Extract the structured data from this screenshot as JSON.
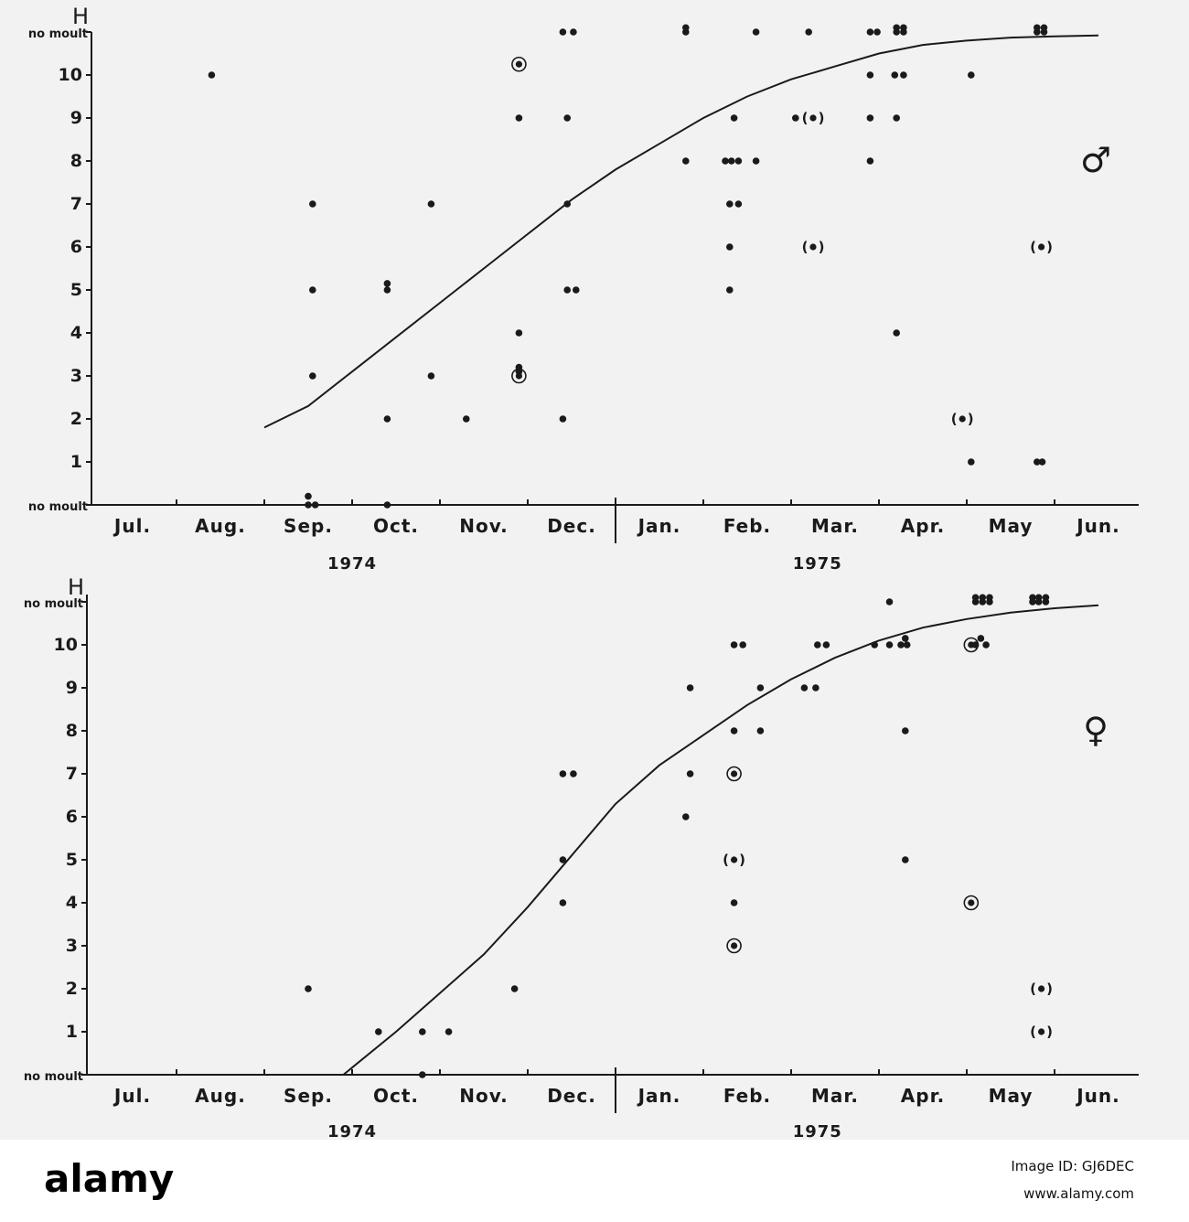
{
  "chart_data": [
    {
      "type": "scatter",
      "panel": "male",
      "ylabel": "H",
      "y_ticks": [
        "no moult",
        "1",
        "2",
        "3",
        "4",
        "5",
        "6",
        "7",
        "8",
        "9",
        "10",
        "no moult"
      ],
      "months": [
        "Jul.",
        "Aug.",
        "Sep.",
        "Oct.",
        "Nov.",
        "Dec.",
        "Jan.",
        "Feb.",
        "Mar.",
        "Apr.",
        "May",
        "Jun."
      ],
      "years": [
        "1974",
        "1975"
      ],
      "sex_symbol": "♂",
      "points": [
        {
          "x": 0.9,
          "y": 10
        },
        {
          "x": 2.0,
          "y": 0
        },
        {
          "x": 2.08,
          "y": 0
        },
        {
          "x": 2.0,
          "y": 0.2
        },
        {
          "x": 2.05,
          "y": 3
        },
        {
          "x": 2.05,
          "y": 5
        },
        {
          "x": 2.05,
          "y": 7
        },
        {
          "x": 2.9,
          "y": 0
        },
        {
          "x": 2.9,
          "y": 2
        },
        {
          "x": 2.9,
          "y": 5
        },
        {
          "x": 2.9,
          "y": 5.15
        },
        {
          "x": 3.4,
          "y": 3
        },
        {
          "x": 3.4,
          "y": 7
        },
        {
          "x": 3.8,
          "y": 2
        },
        {
          "x": 4.4,
          "y": 3.1
        },
        {
          "x": 4.4,
          "y": 3.2
        },
        {
          "x": 4.4,
          "y": 4
        },
        {
          "x": 4.4,
          "y": 9
        },
        {
          "x": 4.9,
          "y": 2
        },
        {
          "x": 4.95,
          "y": 5
        },
        {
          "x": 5.05,
          "y": 5
        },
        {
          "x": 4.95,
          "y": 7
        },
        {
          "x": 4.95,
          "y": 9
        },
        {
          "x": 4.9,
          "y": 11
        },
        {
          "x": 5.02,
          "y": 11
        },
        {
          "x": 6.3,
          "y": 8
        },
        {
          "x": 6.3,
          "y": 11
        },
        {
          "x": 6.3,
          "y": 11.1
        },
        {
          "x": 6.8,
          "y": 5
        },
        {
          "x": 6.8,
          "y": 6
        },
        {
          "x": 6.8,
          "y": 7
        },
        {
          "x": 6.9,
          "y": 7
        },
        {
          "x": 6.75,
          "y": 8
        },
        {
          "x": 6.82,
          "y": 8
        },
        {
          "x": 6.9,
          "y": 8
        },
        {
          "x": 6.85,
          "y": 9
        },
        {
          "x": 7.1,
          "y": 8
        },
        {
          "x": 7.1,
          "y": 11
        },
        {
          "x": 7.55,
          "y": 9
        },
        {
          "x": 7.7,
          "y": 11
        },
        {
          "x": 8.4,
          "y": 8
        },
        {
          "x": 8.4,
          "y": 9
        },
        {
          "x": 8.4,
          "y": 10
        },
        {
          "x": 8.4,
          "y": 11
        },
        {
          "x": 8.48,
          "y": 11
        },
        {
          "x": 8.7,
          "y": 4
        },
        {
          "x": 8.7,
          "y": 9
        },
        {
          "x": 8.68,
          "y": 10
        },
        {
          "x": 8.78,
          "y": 10
        },
        {
          "x": 8.7,
          "y": 11
        },
        {
          "x": 8.78,
          "y": 11
        },
        {
          "x": 8.7,
          "y": 11.1
        },
        {
          "x": 8.78,
          "y": 11.1
        },
        {
          "x": 9.55,
          "y": 1
        },
        {
          "x": 9.55,
          "y": 10
        },
        {
          "x": 10.3,
          "y": 1
        },
        {
          "x": 10.36,
          "y": 1
        },
        {
          "x": 10.3,
          "y": 11
        },
        {
          "x": 10.38,
          "y": 11
        },
        {
          "x": 10.3,
          "y": 11.1
        },
        {
          "x": 10.38,
          "y": 11.1
        }
      ],
      "circled_points": [
        {
          "x": 4.4,
          "y": 10.25
        },
        {
          "x": 4.4,
          "y": 3
        }
      ],
      "parenthesized_points": [
        {
          "x": 7.75,
          "y": 9
        },
        {
          "x": 7.75,
          "y": 6
        },
        {
          "x": 10.35,
          "y": 6
        },
        {
          "x": 9.45,
          "y": 2
        }
      ],
      "curve": [
        {
          "x": 1.5,
          "y": 1.8
        },
        {
          "x": 2.0,
          "y": 2.3
        },
        {
          "x": 2.5,
          "y": 3.1
        },
        {
          "x": 3.0,
          "y": 3.9
        },
        {
          "x": 3.5,
          "y": 4.7
        },
        {
          "x": 4.0,
          "y": 5.5
        },
        {
          "x": 4.5,
          "y": 6.3
        },
        {
          "x": 5.0,
          "y": 7.1
        },
        {
          "x": 5.5,
          "y": 7.8
        },
        {
          "x": 6.0,
          "y": 8.4
        },
        {
          "x": 6.5,
          "y": 9.0
        },
        {
          "x": 7.0,
          "y": 9.5
        },
        {
          "x": 7.5,
          "y": 9.9
        },
        {
          "x": 8.0,
          "y": 10.2
        },
        {
          "x": 8.5,
          "y": 10.5
        },
        {
          "x": 9.0,
          "y": 10.7
        },
        {
          "x": 9.5,
          "y": 10.8
        },
        {
          "x": 10.0,
          "y": 10.87
        },
        {
          "x": 10.5,
          "y": 10.9
        },
        {
          "x": 11.0,
          "y": 10.92
        }
      ],
      "y_range": [
        0,
        11
      ],
      "x_range": [
        0,
        12
      ]
    },
    {
      "type": "scatter",
      "panel": "female",
      "ylabel": "H",
      "y_ticks": [
        "no moult",
        "1",
        "2",
        "3",
        "4",
        "5",
        "6",
        "7",
        "8",
        "9",
        "10",
        "no moult"
      ],
      "months": [
        "Jul.",
        "Aug.",
        "Sep.",
        "Oct.",
        "Nov.",
        "Dec.",
        "Jan.",
        "Feb.",
        "Mar.",
        "Apr.",
        "May",
        "Jun."
      ],
      "years": [
        "1974",
        "1975"
      ],
      "sex_symbol": "♀",
      "points": [
        {
          "x": 2.0,
          "y": 2
        },
        {
          "x": 2.8,
          "y": 1
        },
        {
          "x": 3.3,
          "y": 0
        },
        {
          "x": 3.3,
          "y": 1
        },
        {
          "x": 3.6,
          "y": 1
        },
        {
          "x": 4.35,
          "y": 2
        },
        {
          "x": 4.9,
          "y": 4
        },
        {
          "x": 4.9,
          "y": 5
        },
        {
          "x": 4.9,
          "y": 7
        },
        {
          "x": 5.02,
          "y": 7
        },
        {
          "x": 6.3,
          "y": 6
        },
        {
          "x": 6.35,
          "y": 7
        },
        {
          "x": 6.35,
          "y": 9
        },
        {
          "x": 6.85,
          "y": 4
        },
        {
          "x": 6.85,
          "y": 8
        },
        {
          "x": 6.85,
          "y": 10
        },
        {
          "x": 6.95,
          "y": 10
        },
        {
          "x": 7.15,
          "y": 8
        },
        {
          "x": 7.15,
          "y": 9
        },
        {
          "x": 7.65,
          "y": 9
        },
        {
          "x": 7.78,
          "y": 9
        },
        {
          "x": 7.8,
          "y": 10
        },
        {
          "x": 7.9,
          "y": 10
        },
        {
          "x": 8.45,
          "y": 10
        },
        {
          "x": 8.62,
          "y": 10
        },
        {
          "x": 8.62,
          "y": 11
        },
        {
          "x": 8.8,
          "y": 5
        },
        {
          "x": 8.8,
          "y": 8
        },
        {
          "x": 8.75,
          "y": 10
        },
        {
          "x": 8.82,
          "y": 10
        },
        {
          "x": 8.8,
          "y": 10.15
        },
        {
          "x": 9.6,
          "y": 10
        },
        {
          "x": 9.72,
          "y": 10
        },
        {
          "x": 9.66,
          "y": 10.15
        },
        {
          "x": 9.6,
          "y": 11
        },
        {
          "x": 9.68,
          "y": 11
        },
        {
          "x": 9.76,
          "y": 11
        },
        {
          "x": 9.6,
          "y": 11.1
        },
        {
          "x": 9.68,
          "y": 11.1
        },
        {
          "x": 9.76,
          "y": 11.1
        },
        {
          "x": 10.25,
          "y": 11
        },
        {
          "x": 10.32,
          "y": 11
        },
        {
          "x": 10.4,
          "y": 11
        },
        {
          "x": 10.25,
          "y": 11.1
        },
        {
          "x": 10.32,
          "y": 11.1
        },
        {
          "x": 10.4,
          "y": 11.1
        }
      ],
      "circled_points": [
        {
          "x": 6.85,
          "y": 7
        },
        {
          "x": 6.85,
          "y": 3
        },
        {
          "x": 9.55,
          "y": 10
        },
        {
          "x": 9.55,
          "y": 4
        }
      ],
      "parenthesized_points": [
        {
          "x": 6.85,
          "y": 5
        },
        {
          "x": 10.35,
          "y": 2
        },
        {
          "x": 10.35,
          "y": 1
        }
      ],
      "curve": [
        {
          "x": 2.4,
          "y": 0
        },
        {
          "x": 3.0,
          "y": 1.0
        },
        {
          "x": 3.5,
          "y": 1.9
        },
        {
          "x": 4.0,
          "y": 2.8
        },
        {
          "x": 4.5,
          "y": 3.9
        },
        {
          "x": 5.0,
          "y": 5.1
        },
        {
          "x": 5.5,
          "y": 6.3
        },
        {
          "x": 6.0,
          "y": 7.2
        },
        {
          "x": 6.5,
          "y": 7.9
        },
        {
          "x": 7.0,
          "y": 8.6
        },
        {
          "x": 7.5,
          "y": 9.2
        },
        {
          "x": 8.0,
          "y": 9.7
        },
        {
          "x": 8.5,
          "y": 10.1
        },
        {
          "x": 9.0,
          "y": 10.4
        },
        {
          "x": 9.5,
          "y": 10.6
        },
        {
          "x": 10.0,
          "y": 10.75
        },
        {
          "x": 10.5,
          "y": 10.85
        },
        {
          "x": 11.0,
          "y": 10.92
        }
      ],
      "y_range": [
        0,
        11
      ],
      "x_range": [
        0,
        12
      ]
    }
  ],
  "footer": {
    "brand": "alamy",
    "image_id": "Image ID: GJ6DEC",
    "site": "www.alamy.com"
  }
}
